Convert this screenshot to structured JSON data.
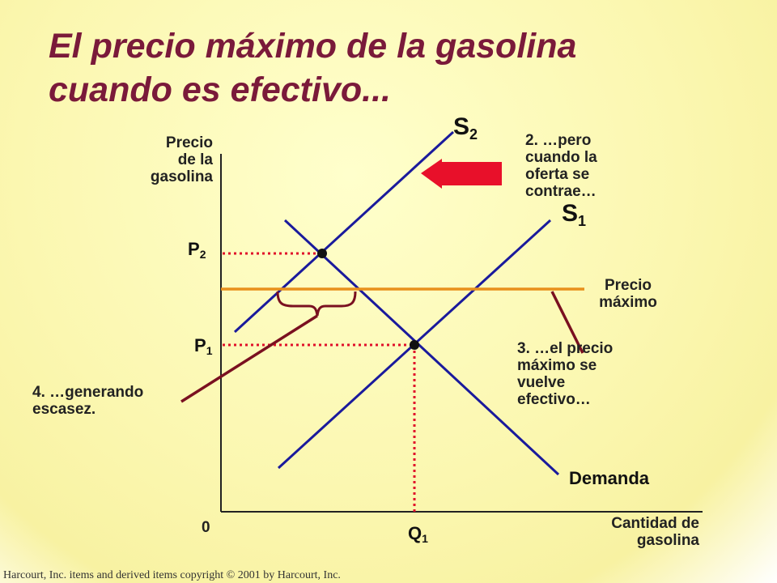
{
  "title": {
    "line1": "El precio máximo de la gasolina",
    "line2": "cuando es efectivo..."
  },
  "axes": {
    "y_label": [
      "Precio",
      "de la",
      "gasolina"
    ],
    "x_label": [
      "Cantidad de",
      "gasolina"
    ],
    "origin": "0"
  },
  "curves": {
    "supply1": {
      "letter": "S",
      "sub": "1"
    },
    "supply2": {
      "letter": "S",
      "sub": "2"
    },
    "demand": "Demanda"
  },
  "price_labels": {
    "p2": {
      "letter": "P",
      "sub": "2"
    },
    "p1": {
      "letter": "P",
      "sub": "1"
    }
  },
  "quantity_labels": {
    "q1": {
      "letter": "Q",
      "sub": "1"
    }
  },
  "annotations": {
    "step2": [
      "2. …pero",
      "cuando la",
      "oferta se",
      "contrae…"
    ],
    "ceiling": [
      "Precio",
      "máximo"
    ],
    "step3": [
      "3. …el precio",
      "máximo se",
      "vuelve",
      "efectivo…"
    ],
    "step4": [
      "4. …generando",
      "escasez."
    ]
  },
  "colors": {
    "title": "#7a1a3a",
    "curves": "#1a1a9c",
    "price_ceiling": "#e8901c",
    "dotted_guides": "#e0102a",
    "brace_and_pointers": "#7a1020",
    "shift_arrow": "#e8102a"
  },
  "footer": {
    "copyright": "Harcourt, Inc. items and derived items copyright © 2001 by Harcourt, Inc."
  }
}
